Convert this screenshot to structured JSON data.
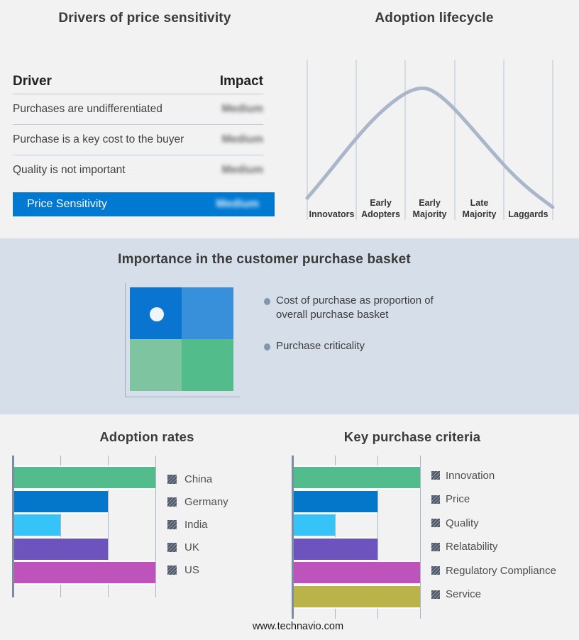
{
  "footer": {
    "website": "www.technavio.com"
  },
  "colors": {
    "page_bg": "#f2f2f3",
    "band_bg": "#d6dfe9",
    "accent_blue": "#0079d2",
    "curve": "#aab7ca",
    "axis": "#7b8ca4",
    "gridline": "#a9b4c4"
  },
  "basket_panel": {
    "title": "Importance in the customer purchase basket",
    "bullets": [
      {
        "line1": "Cost of purchase as proportion of",
        "line2": "overall purchase basket"
      },
      {
        "line1": "Purchase criticality"
      }
    ],
    "quadrant_colors": {
      "top_left": "#0a74d1",
      "top_right": "#3790d9",
      "bottom_left": "#7fc4a0",
      "bottom_right": "#52bd8a"
    }
  },
  "chart_data": [
    {
      "type": "table",
      "title": "Drivers of price sensitivity",
      "columns": [
        "Driver",
        "Impact"
      ],
      "rows": [
        [
          "Purchases are undifferentiated",
          "Medium"
        ],
        [
          "Purchase is a key cost to the buyer",
          "Medium"
        ],
        [
          "Quality is not important",
          "Medium"
        ],
        [
          "Price Sensitivity",
          "Medium"
        ]
      ],
      "notes": "Impact values are shown blurred; last row highlighted on blue (#0079d2)"
    },
    {
      "type": "line",
      "title": "Adoption lifecycle",
      "categories": [
        "Innovators",
        "Early Adopters",
        "Early Majority",
        "Late Majority",
        "Laggards"
      ],
      "description": "Bell curve over five adoption stages, peaking above Early Majority; no numeric axes shown",
      "curve_relative_points": [
        [
          0.0,
          0.05
        ],
        [
          1.0,
          0.45
        ],
        [
          2.0,
          0.92
        ],
        [
          2.4,
          1.0
        ],
        [
          3.0,
          0.86
        ],
        [
          4.0,
          0.4
        ],
        [
          5.0,
          0.02
        ]
      ]
    },
    {
      "type": "bar",
      "title": "Adoption rates",
      "orientation": "horizontal",
      "categories": [
        "China",
        "Germany",
        "India",
        "UK",
        "US"
      ],
      "values": [
        3,
        2,
        1,
        2,
        3
      ],
      "xlim": [
        0,
        3
      ],
      "xlabel": "",
      "ylabel": "",
      "grid": "vertical gridlines only, no tick labels",
      "legend_position": "right",
      "colors": [
        "#52bc8d",
        "#0477cb",
        "#36c3f8",
        "#6c53bd",
        "#bd53bb"
      ]
    },
    {
      "type": "bar",
      "title": "Key purchase criteria",
      "orientation": "horizontal",
      "categories": [
        "Innovation",
        "Price",
        "Quality",
        "Relatability",
        "Regulatory Compliance",
        "Service"
      ],
      "values": [
        3,
        2,
        1,
        2,
        3,
        3
      ],
      "xlim": [
        0,
        3
      ],
      "xlabel": "",
      "ylabel": "",
      "grid": "vertical gridlines only, no tick labels",
      "legend_position": "right",
      "colors": [
        "#52bc8d",
        "#0477cb",
        "#36c3f8",
        "#6c53bd",
        "#bd53bb",
        "#b9b349"
      ]
    }
  ]
}
